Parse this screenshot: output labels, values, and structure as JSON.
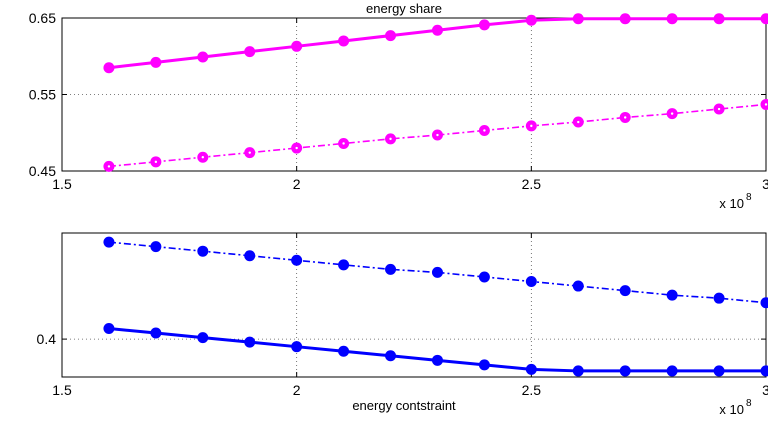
{
  "chart_data": [
    {
      "type": "line",
      "title": "energy share",
      "xlabel": "",
      "ylabel": "",
      "x_exponent_label": "x 10",
      "x_exponent_power": "8",
      "xlim": [
        1.5,
        3.0
      ],
      "ylim": [
        0.45,
        0.65
      ],
      "x_ticks": [
        "1.5",
        "2",
        "2.5",
        "3"
      ],
      "y_ticks": [
        "0.45",
        "0.55",
        "0.65"
      ],
      "grid": true,
      "x": [
        1.6,
        1.7,
        1.8,
        1.9,
        2.0,
        2.1,
        2.2,
        2.3,
        2.4,
        2.5,
        2.6,
        2.7,
        2.8,
        2.9,
        3.0
      ],
      "series": [
        {
          "color": "#ff00ff",
          "style": "solid",
          "values": [
            0.585,
            0.592,
            0.599,
            0.606,
            0.613,
            0.62,
            0.627,
            0.634,
            0.641,
            0.647,
            0.649,
            0.649,
            0.649,
            0.649,
            0.649
          ]
        },
        {
          "color": "#ff00ff",
          "style": "dashdot",
          "values": [
            0.456,
            0.462,
            0.468,
            0.474,
            0.48,
            0.486,
            0.492,
            0.497,
            0.503,
            0.509,
            0.514,
            0.52,
            0.525,
            0.531,
            0.537
          ]
        }
      ]
    },
    {
      "type": "line",
      "title": "",
      "xlabel": "energy contstraint",
      "ylabel": "",
      "x_exponent_label": "x 10",
      "x_exponent_power": "8",
      "xlim": [
        1.5,
        3.0
      ],
      "ylim": [
        0.375,
        0.47
      ],
      "x_ticks": [
        "1.5",
        "2",
        "2.5",
        "3"
      ],
      "y_ticks": [
        "0.4"
      ],
      "grid": true,
      "x": [
        1.6,
        1.7,
        1.8,
        1.9,
        2.0,
        2.1,
        2.2,
        2.3,
        2.4,
        2.5,
        2.6,
        2.7,
        2.8,
        2.9,
        3.0
      ],
      "series": [
        {
          "color": "#0000ff",
          "style": "solid",
          "values": [
            0.407,
            0.404,
            0.401,
            0.398,
            0.395,
            0.392,
            0.389,
            0.386,
            0.383,
            0.38,
            0.379,
            0.379,
            0.379,
            0.379,
            0.379
          ]
        },
        {
          "color": "#0000ff",
          "style": "dashdot",
          "values": [
            0.464,
            0.461,
            0.458,
            0.455,
            0.452,
            0.449,
            0.446,
            0.444,
            0.441,
            0.438,
            0.435,
            0.432,
            0.429,
            0.427,
            0.424
          ]
        }
      ]
    }
  ]
}
